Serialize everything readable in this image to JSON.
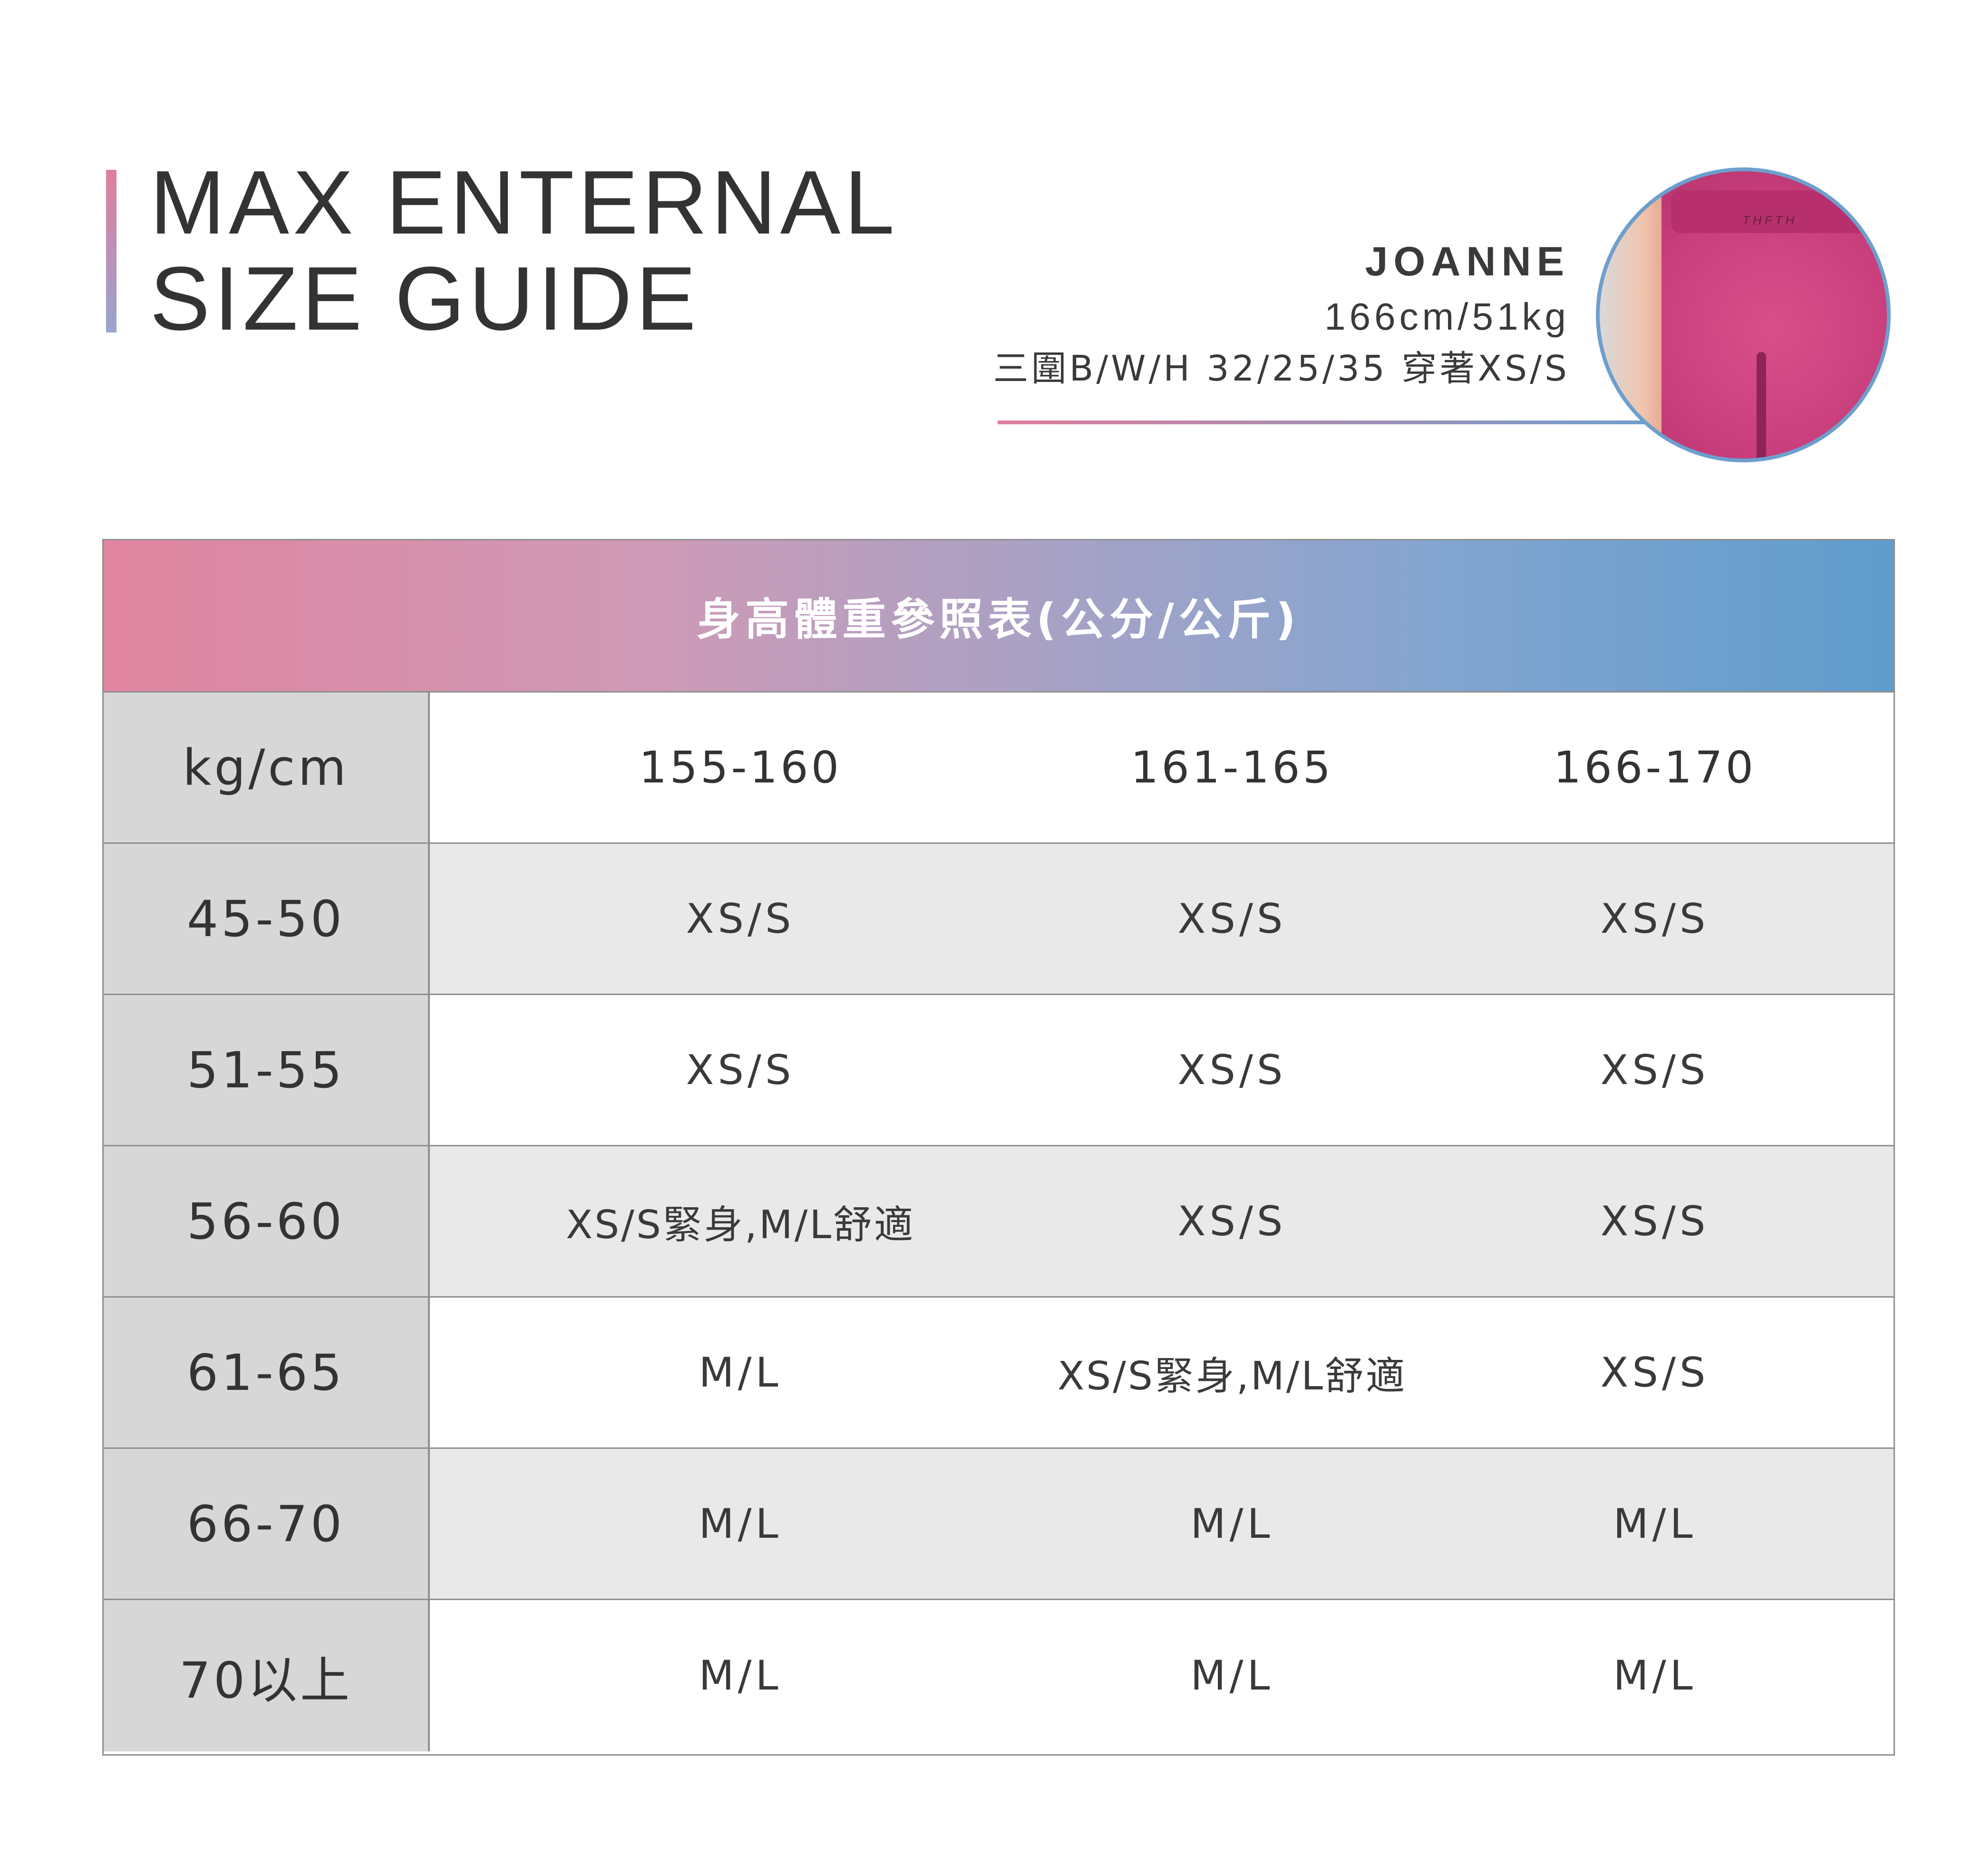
{
  "title": {
    "line1": "MAX ENTERNAL",
    "line2": "SIZE GUIDE"
  },
  "model": {
    "name": "JOANNE",
    "stats": "166cm/51kg",
    "measurements": "三圍B/W/H 32/25/35 穿著XS/S"
  },
  "table": {
    "header": "身高體重參照表(公分/公斤)",
    "corner": "kg/cm",
    "heights": [
      "155-160",
      "161-165",
      "166-170"
    ],
    "rows": [
      {
        "weight": "45-50",
        "sizes": [
          "XS/S",
          "XS/S",
          "XS/S"
        ]
      },
      {
        "weight": "51-55",
        "sizes": [
          "XS/S",
          "XS/S",
          "XS/S"
        ]
      },
      {
        "weight": "56-60",
        "sizes": [
          "XS/S緊身,M/L舒適",
          "XS/S",
          "XS/S"
        ]
      },
      {
        "weight": "61-65",
        "sizes": [
          "M/L",
          "XS/S緊身,M/L舒適",
          "XS/S"
        ]
      },
      {
        "weight": "66-70",
        "sizes": [
          "M/L",
          "M/L",
          "M/L"
        ]
      },
      {
        "weight": "70以上",
        "sizes": [
          "M/L",
          "M/L",
          "M/L"
        ]
      }
    ]
  },
  "colors": {
    "gradient_start": "#e0849f",
    "gradient_end": "#5f9ccb",
    "label_bg": "#d7d7d7",
    "alt_row_bg": "#e9e9e9"
  }
}
